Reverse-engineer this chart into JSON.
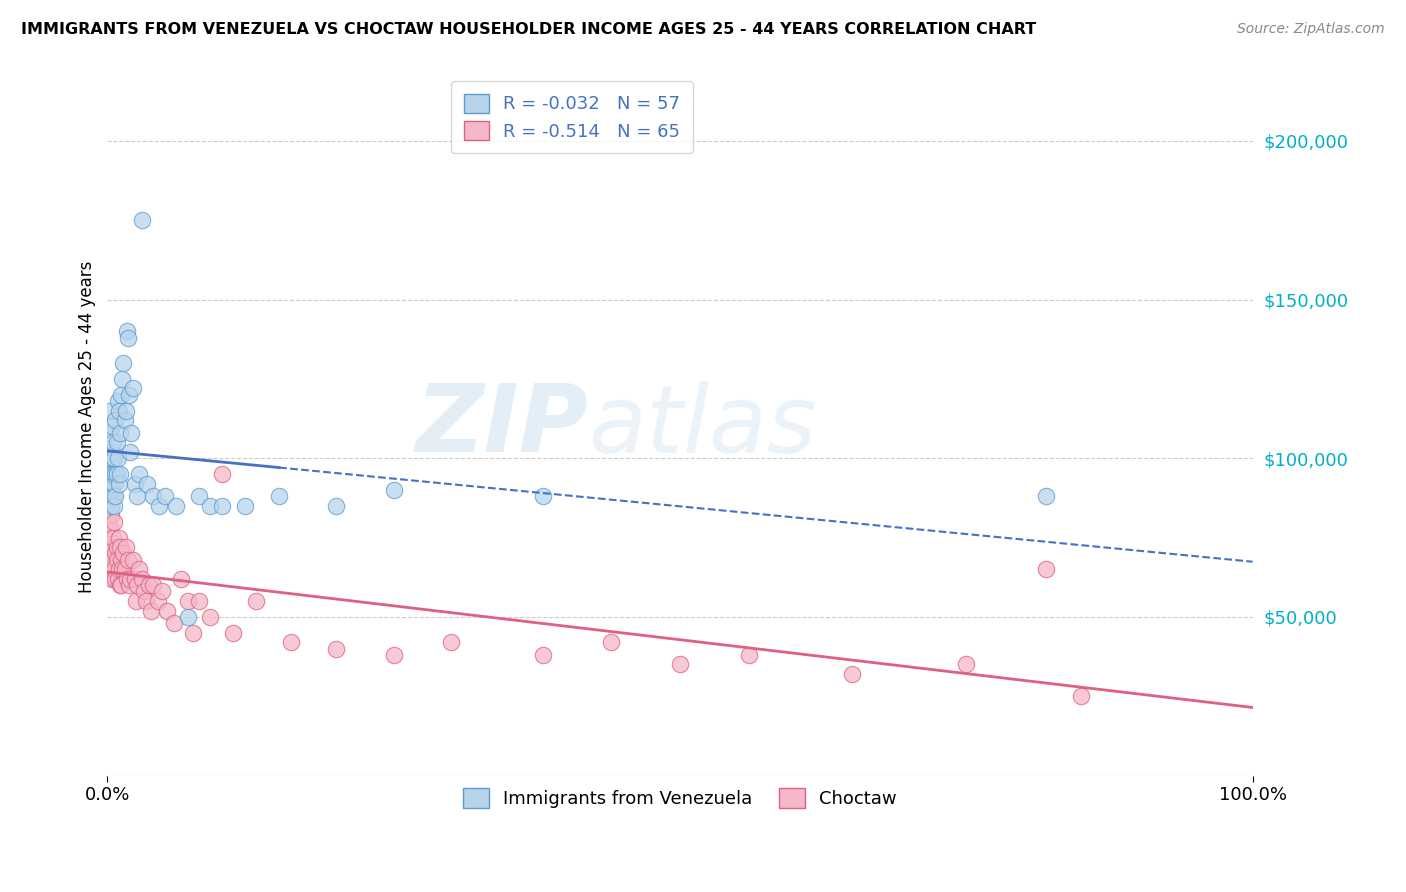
{
  "title": "IMMIGRANTS FROM VENEZUELA VS CHOCTAW HOUSEHOLDER INCOME AGES 25 - 44 YEARS CORRELATION CHART",
  "source": "Source: ZipAtlas.com",
  "ylabel": "Householder Income Ages 25 - 44 years",
  "xlim": [
    0,
    1.0
  ],
  "ylim": [
    0,
    220000
  ],
  "ytick_values": [
    50000,
    100000,
    150000,
    200000
  ],
  "ytick_labels": [
    "$50,000",
    "$100,000",
    "$150,000",
    "$200,000"
  ],
  "watermark_zip": "ZIP",
  "watermark_atlas": "atlas",
  "blue_R": "-0.032",
  "blue_N": "57",
  "pink_R": "-0.514",
  "pink_N": "65",
  "blue_fill": "#b8d4ea",
  "blue_edge": "#5b9bd5",
  "pink_fill": "#f4b8c8",
  "pink_edge": "#e06080",
  "blue_line_solid": "#4472c4",
  "pink_line_solid": "#e06080",
  "legend_text_color": "#4472c4",
  "ytick_color": "#00b0c8",
  "blue_points_x": [
    0.001,
    0.001,
    0.002,
    0.002,
    0.003,
    0.003,
    0.003,
    0.004,
    0.004,
    0.004,
    0.005,
    0.005,
    0.005,
    0.006,
    0.006,
    0.006,
    0.007,
    0.007,
    0.007,
    0.008,
    0.008,
    0.009,
    0.009,
    0.01,
    0.01,
    0.011,
    0.011,
    0.012,
    0.013,
    0.014,
    0.015,
    0.016,
    0.017,
    0.018,
    0.019,
    0.02,
    0.021,
    0.022,
    0.024,
    0.026,
    0.028,
    0.03,
    0.035,
    0.04,
    0.045,
    0.05,
    0.06,
    0.07,
    0.08,
    0.09,
    0.1,
    0.12,
    0.15,
    0.2,
    0.25,
    0.38,
    0.82
  ],
  "blue_points_y": [
    95000,
    108000,
    88000,
    115000,
    95000,
    102000,
    85000,
    110000,
    90000,
    100000,
    95000,
    88000,
    105000,
    92000,
    100000,
    85000,
    112000,
    95000,
    88000,
    105000,
    95000,
    118000,
    100000,
    115000,
    92000,
    108000,
    95000,
    120000,
    125000,
    130000,
    112000,
    115000,
    140000,
    138000,
    120000,
    102000,
    108000,
    122000,
    92000,
    88000,
    95000,
    175000,
    92000,
    88000,
    85000,
    88000,
    85000,
    50000,
    88000,
    85000,
    85000,
    85000,
    88000,
    85000,
    90000,
    88000,
    88000
  ],
  "pink_points_x": [
    0.001,
    0.002,
    0.002,
    0.003,
    0.003,
    0.004,
    0.004,
    0.005,
    0.005,
    0.006,
    0.006,
    0.007,
    0.007,
    0.008,
    0.008,
    0.009,
    0.01,
    0.01,
    0.011,
    0.011,
    0.012,
    0.012,
    0.013,
    0.014,
    0.015,
    0.016,
    0.017,
    0.018,
    0.019,
    0.02,
    0.022,
    0.024,
    0.025,
    0.026,
    0.028,
    0.03,
    0.032,
    0.034,
    0.036,
    0.038,
    0.04,
    0.044,
    0.048,
    0.052,
    0.058,
    0.064,
    0.07,
    0.075,
    0.08,
    0.09,
    0.1,
    0.11,
    0.13,
    0.16,
    0.2,
    0.25,
    0.3,
    0.38,
    0.44,
    0.5,
    0.56,
    0.65,
    0.75,
    0.82,
    0.85
  ],
  "pink_points_y": [
    75000,
    78000,
    65000,
    82000,
    70000,
    72000,
    62000,
    75000,
    68000,
    80000,
    65000,
    70000,
    62000,
    72000,
    68000,
    62000,
    75000,
    65000,
    72000,
    60000,
    68000,
    60000,
    65000,
    70000,
    65000,
    72000,
    62000,
    68000,
    60000,
    62000,
    68000,
    62000,
    55000,
    60000,
    65000,
    62000,
    58000,
    55000,
    60000,
    52000,
    60000,
    55000,
    58000,
    52000,
    48000,
    62000,
    55000,
    45000,
    55000,
    50000,
    95000,
    45000,
    55000,
    42000,
    40000,
    38000,
    42000,
    38000,
    42000,
    35000,
    38000,
    32000,
    35000,
    65000,
    25000
  ]
}
